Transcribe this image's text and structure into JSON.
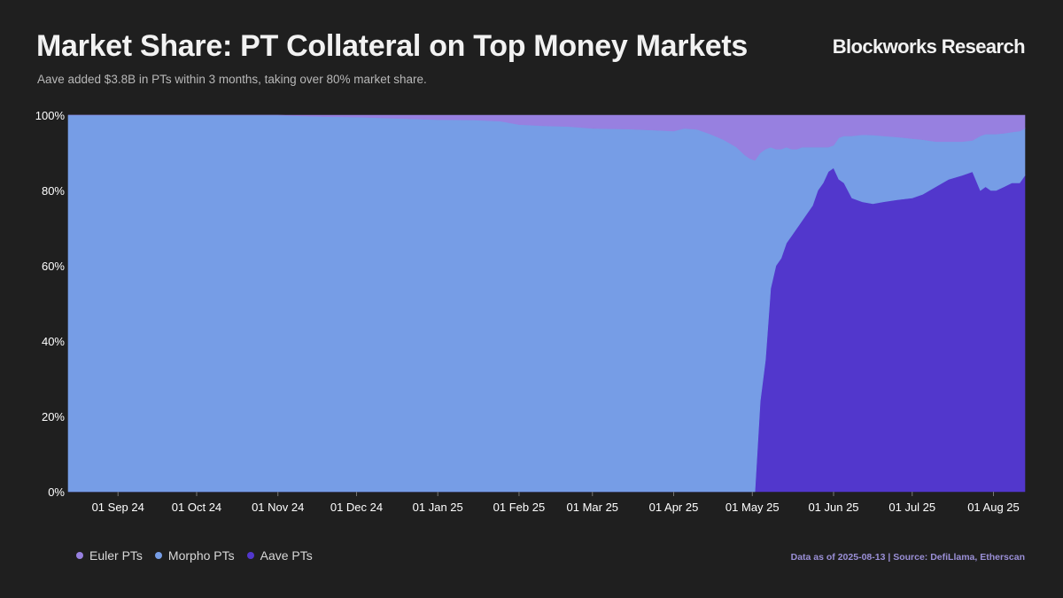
{
  "header": {
    "title": "Market Share: PT Collateral on Top Money Markets",
    "subtitle": "Aave added $3.8B in PTs within 3 months, taking over 80% market share.",
    "brand": "Blockworks Research"
  },
  "footer": {
    "note": "Data as of 2025-08-13 | Source: DefiLlama, Etherscan"
  },
  "colors": {
    "background": "#1f1f1f",
    "euler": "#9780e0",
    "morpho": "#769de6",
    "aave": "#5237cc"
  },
  "chart_data": {
    "type": "area",
    "stacked": true,
    "normalized_percent": true,
    "x_range": [
      "2024-08-13",
      "2025-08-13"
    ],
    "ylim": [
      0,
      100
    ],
    "y_ticks": [
      0,
      20,
      40,
      60,
      80,
      100
    ],
    "y_tick_labels": [
      "0%",
      "20%",
      "40%",
      "60%",
      "80%",
      "100%"
    ],
    "x_ticks": [
      "2024-09-01",
      "2024-10-01",
      "2024-11-01",
      "2024-12-01",
      "2025-01-01",
      "2025-02-01",
      "2025-03-01",
      "2025-04-01",
      "2025-05-01",
      "2025-06-01",
      "2025-07-01",
      "2025-08-01"
    ],
    "x_tick_labels": [
      "01 Sep 24",
      "01 Oct 24",
      "01 Nov 24",
      "01 Dec 24",
      "01 Jan 25",
      "01 Feb 25",
      "01 Mar 25",
      "01 Apr 25",
      "01 May 25",
      "01 Jun 25",
      "01 Jul 25",
      "01 Aug 25"
    ],
    "legend_position": "bottom-left",
    "grid": false,
    "x": [
      "2024-08-13",
      "2024-09-01",
      "2024-10-01",
      "2024-11-01",
      "2024-11-20",
      "2024-12-01",
      "2024-12-10",
      "2025-01-01",
      "2025-01-15",
      "2025-01-25",
      "2025-02-01",
      "2025-02-10",
      "2025-02-20",
      "2025-03-01",
      "2025-03-15",
      "2025-03-25",
      "2025-04-01",
      "2025-04-05",
      "2025-04-10",
      "2025-04-15",
      "2025-04-20",
      "2025-04-25",
      "2025-04-28",
      "2025-04-30",
      "2025-05-02",
      "2025-05-04",
      "2025-05-06",
      "2025-05-08",
      "2025-05-10",
      "2025-05-12",
      "2025-05-14",
      "2025-05-16",
      "2025-05-18",
      "2025-05-20",
      "2025-05-22",
      "2025-05-24",
      "2025-05-26",
      "2025-05-28",
      "2025-05-30",
      "2025-06-01",
      "2025-06-03",
      "2025-06-05",
      "2025-06-08",
      "2025-06-12",
      "2025-06-16",
      "2025-06-20",
      "2025-06-25",
      "2025-07-01",
      "2025-07-05",
      "2025-07-10",
      "2025-07-15",
      "2025-07-20",
      "2025-07-24",
      "2025-07-27",
      "2025-07-29",
      "2025-07-31",
      "2025-08-02",
      "2025-08-05",
      "2025-08-08",
      "2025-08-11",
      "2025-08-13"
    ],
    "series": [
      {
        "name": "Aave PTs",
        "values": [
          0,
          0,
          0,
          0,
          0,
          0,
          0,
          0,
          0,
          0,
          0,
          0,
          0,
          0,
          0,
          0,
          0,
          0,
          0,
          0,
          0,
          0,
          0,
          0,
          0,
          24,
          35,
          54,
          60,
          62,
          66,
          68,
          70,
          72,
          74,
          76,
          80,
          82,
          85,
          86,
          83,
          82,
          78,
          77,
          76.5,
          77,
          77.5,
          78,
          79,
          81,
          83,
          84,
          85,
          80,
          81,
          80,
          80,
          81,
          82,
          82,
          84
        ]
      },
      {
        "name": "Morpho PTs",
        "values": [
          100,
          100,
          100,
          100,
          99.6,
          99.5,
          99.3,
          98.8,
          98.7,
          98.4,
          97.5,
          97.2,
          97,
          96.5,
          96.3,
          96,
          95.8,
          96.5,
          96.2,
          95,
          93.5,
          91.5,
          89.5,
          88.5,
          88,
          66,
          56,
          37.5,
          31,
          29,
          25.5,
          23,
          21,
          19.5,
          17.5,
          15.5,
          11.5,
          9.5,
          6.5,
          6,
          11,
          12.5,
          16.5,
          17.8,
          18.2,
          17.5,
          16.7,
          15.8,
          14.5,
          12,
          10,
          9,
          8.3,
          14.5,
          14,
          15,
          15,
          14.2,
          13.5,
          13.8,
          12.5
        ]
      },
      {
        "name": "Euler PTs",
        "values": [
          0,
          0,
          0,
          0,
          0.4,
          0.5,
          0.7,
          1.2,
          1.3,
          1.6,
          2.5,
          2.8,
          3,
          3.5,
          3.7,
          4,
          4.2,
          3.5,
          3.8,
          5,
          6.5,
          8.5,
          10.5,
          11.5,
          12,
          10,
          9,
          8.5,
          9,
          9,
          8.5,
          9,
          9,
          8.5,
          8.5,
          8.5,
          8.5,
          8.5,
          8.5,
          8,
          6,
          5.5,
          5.5,
          5.2,
          5.3,
          5.5,
          5.8,
          6.2,
          6.5,
          7,
          7,
          7,
          6.7,
          5.5,
          5,
          5,
          5,
          4.8,
          4.5,
          4.2,
          3.5
        ]
      }
    ]
  }
}
